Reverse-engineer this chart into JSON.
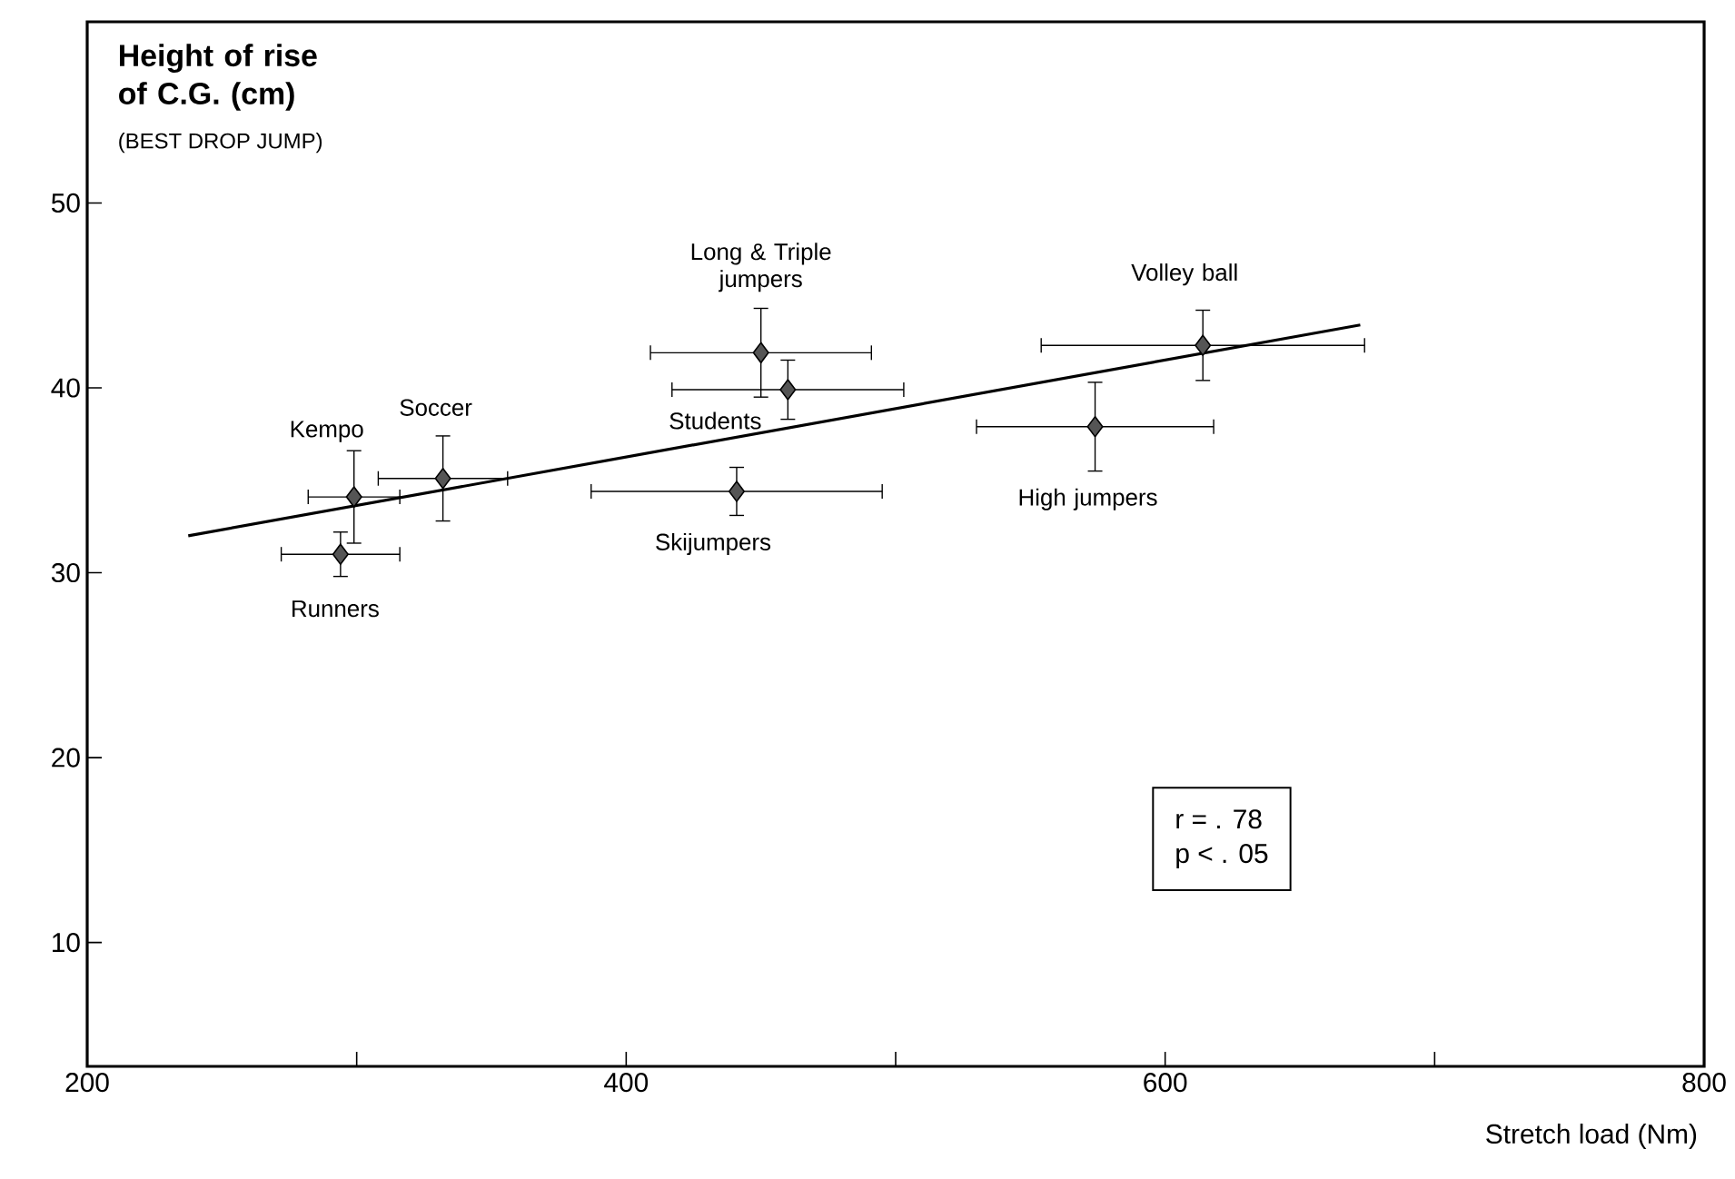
{
  "chart_data": {
    "type": "scatter",
    "ylabel": "Height of rise of C.G. (cm)",
    "subtitle": "(BEST DROP JUMP)",
    "xlabel": "Stretch load (Nm)",
    "xlim": [
      200,
      800
    ],
    "ylim": [
      3.3,
      59.8
    ],
    "xticks": [
      200,
      {
        "value": 300,
        "label": null
      },
      400,
      {
        "value": 500,
        "label": null
      },
      600,
      {
        "value": 700,
        "label": null
      },
      800
    ],
    "yticks": [
      10,
      20,
      30,
      40,
      50
    ],
    "marker": "diamond",
    "series": [
      {
        "color": "#555555",
        "x": [
          294,
          299,
          332,
          441,
          450,
          460,
          574,
          614
        ],
        "values": [
          31.0,
          34.1,
          35.1,
          34.4,
          41.9,
          39.9,
          37.9,
          42.3
        ],
        "errors": [
          1.2,
          2.5,
          2.3,
          1.3,
          2.4,
          1.6,
          2.4,
          1.9
        ],
        "xerrors": [
          22,
          17,
          24,
          54,
          41,
          43,
          44,
          60
        ]
      },
      {
        "type": "line",
        "color": "#000000",
        "marker": "none",
        "line_style": "solid",
        "x": [
          237.5,
          672.4
        ],
        "values": [
          32.0,
          43.4
        ]
      }
    ],
    "annotations": [
      {
        "text": "Runners",
        "x": 294,
        "y": 31.0
      },
      {
        "text": "Kempo",
        "x": 299,
        "y": 34.1
      },
      {
        "text": "Soccer",
        "x": 332,
        "y": 35.1
      },
      {
        "text": "Skijumpers",
        "x": 441,
        "y": 34.4
      },
      {
        "text": "Long & Triple jumpers",
        "x": 450,
        "y": 41.9
      },
      {
        "text": "Students",
        "x": 460,
        "y": 39.9
      },
      {
        "text": "High jumpers",
        "x": 574,
        "y": 37.9
      },
      {
        "text": "Volley ball",
        "x": 614,
        "y": 42.3
      },
      "r = . 78",
      "p < . 05"
    ]
  }
}
